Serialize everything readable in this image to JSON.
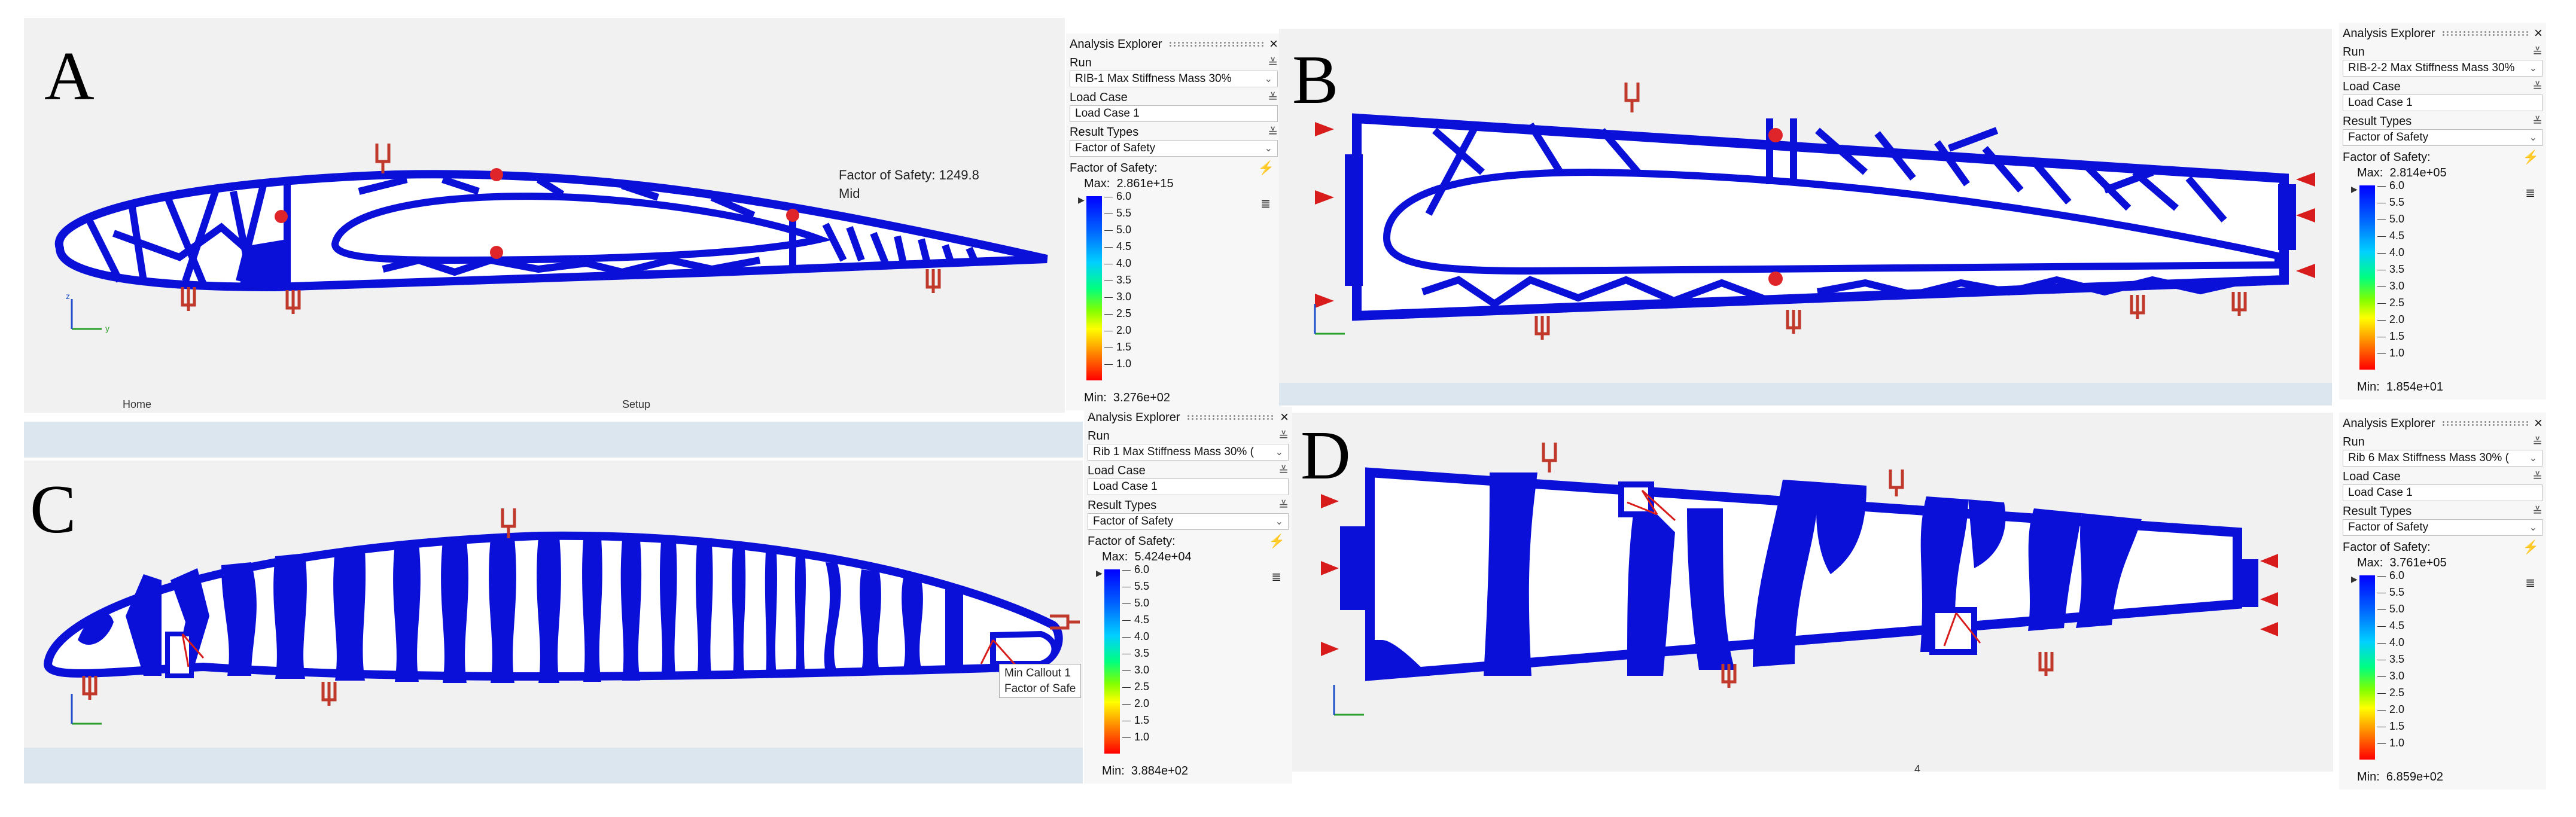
{
  "panels": [
    {
      "letter": "A",
      "run": "RIB-1 Max Stiffness Mass 30%",
      "load_case": "Load Case 1",
      "result_type": "Factor of Safety",
      "max": "2.861e+15",
      "min": "3.276e+02"
    },
    {
      "letter": "B",
      "run": "RIB-2-2 Max Stiffness Mass 30%",
      "load_case": "Load Case 1",
      "result_type": "Factor of Safety",
      "max": "2.814e+05",
      "min": "1.854e+01"
    },
    {
      "letter": "C",
      "run": "Rib 1 Max Stiffness Mass 30% (",
      "load_case": "Load Case 1",
      "result_type": "Factor of Safety",
      "max": "5.424e+04",
      "min": "3.884e+02"
    },
    {
      "letter": "D",
      "run": "Rib 6 Max Stiffness Mass 30% (",
      "load_case": "Load Case 1",
      "result_type": "Factor of Safety",
      "max": "3.761e+05",
      "min": "6.859e+02"
    }
  ],
  "explorer": {
    "title": "Analysis Explorer",
    "run_label": "Run",
    "load_case_label": "Load Case",
    "result_types_label": "Result Types",
    "legend_label": "Factor of Safety:",
    "max_label": "Max:",
    "min_label": "Min:"
  },
  "legend_ticks": [
    "6.0",
    "5.5",
    "5.0",
    "4.5",
    "4.0",
    "3.5",
    "3.0",
    "2.5",
    "2.0",
    "1.5",
    "1.0"
  ],
  "callout_a": {
    "line1": "Factor of Safety: 1249.8",
    "line2": "Mid"
  },
  "callout_c": {
    "line1": "Min Callout 1",
    "line2": "Factor of Safe"
  },
  "toolbar": {
    "home": "Home",
    "setup": "Setup"
  },
  "page_number": "4",
  "colors": {
    "structure": "#0a10d8",
    "background": "#f1f1f1",
    "load_marker": "#d81c1c",
    "support_marker": "#c0392b"
  }
}
